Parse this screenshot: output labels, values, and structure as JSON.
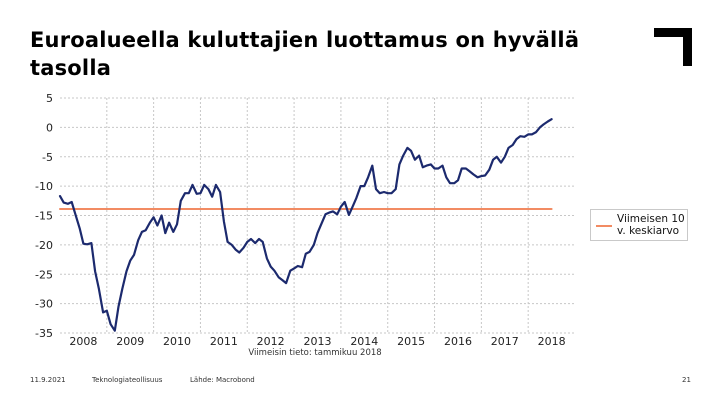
{
  "slide": {
    "title": "Euroalueella kuluttajien luottamus on hyvällä tasolla",
    "footer_date": "11.9.2021",
    "footer_org": "Teknologiateollisuus",
    "footer_source": "Lähde: Macrobond",
    "page_number": "21"
  },
  "chart_data": {
    "type": "line",
    "title": "",
    "xlabel": "",
    "ylabel": "",
    "x_tick_labels": [
      "2008",
      "2009",
      "2010",
      "2011",
      "2012",
      "2013",
      "2014",
      "2015",
      "2016",
      "2017",
      "2018"
    ],
    "y_tick_labels": [
      "5",
      "0",
      "-5",
      "-10",
      "-15",
      "-20",
      "-25",
      "-30",
      "-35"
    ],
    "ylim": [
      -35,
      5
    ],
    "xlim": [
      2007.5,
      2018.5
    ],
    "grid": true,
    "annotation": "Viimeisin tieto: tammikuu 2018",
    "legend_position": "right",
    "series": [
      {
        "name": "",
        "color": "#1c2a6e",
        "x": [
          2007.5,
          2007.58,
          2007.67,
          2007.75,
          2007.83,
          2007.92,
          2008.0,
          2008.08,
          2008.17,
          2008.25,
          2008.33,
          2008.42,
          2008.5,
          2008.58,
          2008.67,
          2008.75,
          2008.83,
          2008.92,
          2009.0,
          2009.08,
          2009.17,
          2009.25,
          2009.33,
          2009.42,
          2009.5,
          2009.58,
          2009.67,
          2009.75,
          2009.83,
          2009.92,
          2010.0,
          2010.08,
          2010.17,
          2010.25,
          2010.33,
          2010.42,
          2010.5,
          2010.58,
          2010.67,
          2010.75,
          2010.83,
          2010.92,
          2011.0,
          2011.08,
          2011.17,
          2011.25,
          2011.33,
          2011.42,
          2011.5,
          2011.58,
          2011.67,
          2011.75,
          2011.83,
          2011.92,
          2012.0,
          2012.08,
          2012.17,
          2012.25,
          2012.33,
          2012.42,
          2012.5,
          2012.58,
          2012.67,
          2012.75,
          2012.83,
          2012.92,
          2013.0,
          2013.08,
          2013.17,
          2013.25,
          2013.33,
          2013.42,
          2013.5,
          2013.58,
          2013.67,
          2013.75,
          2013.83,
          2013.92,
          2014.0,
          2014.08,
          2014.17,
          2014.25,
          2014.33,
          2014.42,
          2014.5,
          2014.58,
          2014.67,
          2014.75,
          2014.83,
          2014.92,
          2015.0,
          2015.08,
          2015.17,
          2015.25,
          2015.33,
          2015.42,
          2015.5,
          2015.58,
          2015.67,
          2015.75,
          2015.83,
          2015.92,
          2016.0,
          2016.08,
          2016.17,
          2016.25,
          2016.33,
          2016.42,
          2016.5,
          2016.58,
          2016.67,
          2016.75,
          2016.83,
          2016.92,
          2017.0,
          2017.08,
          2017.17,
          2017.25,
          2017.33,
          2017.42,
          2017.5,
          2017.58,
          2017.67,
          2017.75,
          2017.83,
          2017.92,
          2018.0
        ],
        "y": [
          -11.7,
          -12.8,
          -13.0,
          -12.7,
          -14.8,
          -17.2,
          -19.8,
          -19.9,
          -19.7,
          -24.5,
          -27.5,
          -31.5,
          -31.2,
          -33.5,
          -34.6,
          -30.5,
          -27.5,
          -24.5,
          -22.7,
          -21.7,
          -19.2,
          -17.8,
          -17.5,
          -16.2,
          -15.3,
          -16.7,
          -15.0,
          -18.0,
          -16.2,
          -17.8,
          -16.5,
          -12.5,
          -11.2,
          -11.2,
          -9.8,
          -11.3,
          -11.2,
          -9.8,
          -10.5,
          -11.8,
          -9.8,
          -11.0,
          -16.0,
          -19.5,
          -20.0,
          -20.8,
          -21.3,
          -20.5,
          -19.5,
          -19.0,
          -19.7,
          -19.0,
          -19.5,
          -22.3,
          -23.7,
          -24.4,
          -25.5,
          -26.0,
          -26.5,
          -24.4,
          -24.0,
          -23.6,
          -23.8,
          -21.5,
          -21.2,
          -20.0,
          -18.0,
          -16.5,
          -14.8,
          -14.5,
          -14.3,
          -14.8,
          -13.5,
          -12.7,
          -14.9,
          -13.5,
          -12.0,
          -10.0,
          -10.0,
          -8.5,
          -6.5,
          -10.5,
          -11.2,
          -11.0,
          -11.2,
          -11.2,
          -10.5,
          -6.3,
          -4.8,
          -3.5,
          -4.0,
          -5.5,
          -4.8,
          -6.8,
          -6.5,
          -6.3,
          -7.0,
          -7.0,
          -6.5,
          -8.5,
          -9.5,
          -9.5,
          -9.0,
          -7.0,
          -7.0,
          -7.5,
          -8.0,
          -8.5,
          -8.3,
          -8.2,
          -7.2,
          -5.5,
          -5.0,
          -6.0,
          -5.0,
          -3.5,
          -3.0,
          -2.0,
          -1.5,
          -1.6,
          -1.2,
          -1.2,
          -0.8,
          0.0,
          0.5,
          1.0,
          1.4
        ]
      },
      {
        "name": "Viimeisen 10 v. keskiarvo",
        "color": "#f28b63",
        "x": [
          2007.5,
          2018.0
        ],
        "y": [
          -13.9,
          -13.9
        ]
      }
    ]
  }
}
